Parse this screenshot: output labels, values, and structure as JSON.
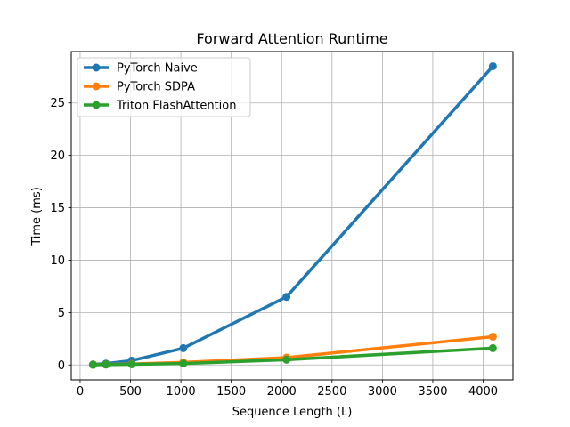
{
  "chart_data": {
    "type": "line",
    "title": "Forward Attention Runtime",
    "xlabel": "Sequence Length (L)",
    "ylabel": "Time (ms)",
    "xlim": [
      -88,
      4296
    ],
    "ylim": [
      -1.42,
      29.9
    ],
    "xticks": [
      0,
      500,
      1000,
      1500,
      2000,
      2500,
      3000,
      3500,
      4000
    ],
    "yticks": [
      0,
      5,
      10,
      15,
      20,
      25
    ],
    "grid": true,
    "legend_position": "upper-left",
    "x": [
      128,
      256,
      512,
      1024,
      2048,
      4096
    ],
    "series": [
      {
        "name": "PyTorch Naive",
        "color": "#1f77b4",
        "values": [
          0.05,
          0.13,
          0.42,
          1.6,
          6.5,
          28.5
        ]
      },
      {
        "name": "PyTorch SDPA",
        "color": "#ff7f0e",
        "values": [
          0.03,
          0.05,
          0.1,
          0.25,
          0.7,
          2.7
        ]
      },
      {
        "name": "Triton FlashAttention",
        "color": "#2ca02c",
        "values": [
          0.02,
          0.04,
          0.07,
          0.14,
          0.5,
          1.6
        ]
      }
    ]
  }
}
